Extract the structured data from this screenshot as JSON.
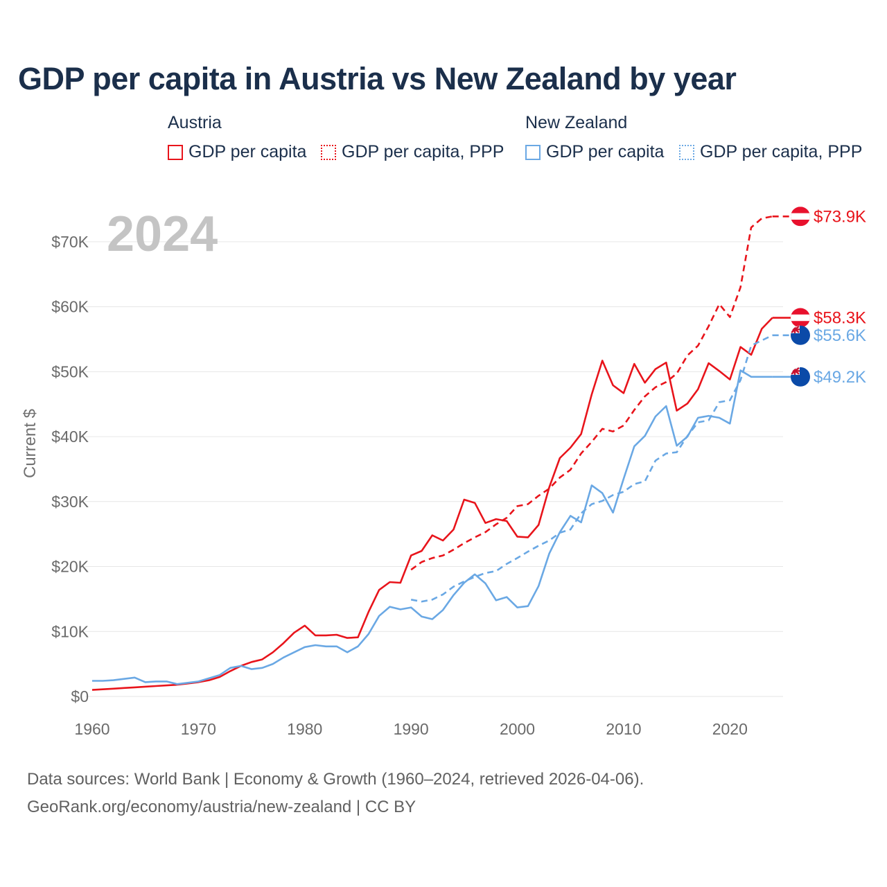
{
  "title": "GDP per capita in Austria vs New Zealand by year",
  "legend": {
    "austria": {
      "group": "Austria",
      "items": [
        "GDP per capita",
        "GDP per capita, PPP"
      ],
      "color": "#e8141b"
    },
    "new_zealand": {
      "group": "New Zealand",
      "items": [
        "GDP per capita",
        "GDP per capita, PPP"
      ],
      "color": "#6aa8e4"
    }
  },
  "year_label": "2024",
  "footer": {
    "line1": "Data sources: World Bank | Economy & Growth (1960–2024, retrieved 2026-04-06).",
    "line2": "GeoRank.org/economy/austria/new-zealand | CC BY"
  },
  "chart_data": {
    "type": "line",
    "title": "GDP per capita in Austria vs New Zealand by year",
    "xlabel": "",
    "ylabel": "Current $",
    "xlim": [
      1960,
      2025
    ],
    "ylim": [
      0,
      75000
    ],
    "x_ticks": [
      1960,
      1970,
      1980,
      1990,
      2000,
      2010,
      2020
    ],
    "y_ticks": [
      0,
      10000,
      20000,
      30000,
      40000,
      50000,
      60000,
      70000
    ],
    "y_tick_labels": [
      "$0",
      "$10K",
      "$20K",
      "$30K",
      "$40K",
      "$50K",
      "$60K",
      "$70K"
    ],
    "grid": true,
    "legend_position": "top",
    "series": [
      {
        "name": "Austria GDP per capita",
        "country": "Austria",
        "color": "#e8141b",
        "style": "solid",
        "end_label": "$58.3K",
        "start_year": 1960,
        "values": [
          1000,
          1100,
          1200,
          1300,
          1400,
          1500,
          1600,
          1700,
          1800,
          2000,
          2200,
          2500,
          3000,
          3900,
          4700,
          5300,
          5700,
          6800,
          8200,
          9800,
          10900,
          9400,
          9400,
          9500,
          9000,
          9100,
          13000,
          16400,
          17600,
          17500,
          21700,
          22400,
          24800,
          24000,
          25700,
          30300,
          29800,
          26700,
          27300,
          27000,
          24600,
          24500,
          26400,
          32200,
          36700,
          38300,
          40400,
          46500,
          51700,
          47900,
          46700,
          51200,
          48300,
          50400,
          51400,
          44000,
          45100,
          47300,
          51300,
          50100,
          48800,
          53800,
          52600,
          56600,
          58300
        ]
      },
      {
        "name": "Austria GDP per capita, PPP",
        "country": "Austria",
        "color": "#e8141b",
        "style": "dashed",
        "end_label": "$73.9K",
        "start_year": 1990,
        "values": [
          19500,
          20700,
          21300,
          21700,
          22600,
          23600,
          24500,
          25300,
          26500,
          27500,
          29300,
          29600,
          30900,
          32000,
          33700,
          34900,
          37400,
          39200,
          41200,
          40800,
          41700,
          44100,
          46200,
          47600,
          48400,
          49700,
          52500,
          54000,
          57000,
          60400,
          58400,
          63000,
          72200,
          73600,
          73900
        ]
      },
      {
        "name": "New Zealand GDP per capita",
        "country": "New Zealand",
        "color": "#6aa8e4",
        "style": "solid",
        "end_label": "$49.2K",
        "start_year": 1960,
        "values": [
          2400,
          2400,
          2500,
          2700,
          2900,
          2200,
          2300,
          2300,
          1900,
          2100,
          2300,
          2800,
          3300,
          4400,
          4700,
          4200,
          4400,
          5000,
          6000,
          6800,
          7600,
          7900,
          7700,
          7700,
          6800,
          7700,
          9600,
          12400,
          13800,
          13400,
          13700,
          12300,
          11900,
          13300,
          15600,
          17500,
          18800,
          17400,
          14800,
          15300,
          13700,
          13900,
          17000,
          22000,
          25300,
          27800,
          26800,
          32500,
          31300,
          28300,
          33500,
          38500,
          40100,
          43100,
          44700,
          38600,
          40000,
          42900,
          43200,
          42900,
          42000,
          50200,
          49200,
          49200,
          49200
        ]
      },
      {
        "name": "New Zealand GDP per capita, PPP",
        "country": "New Zealand",
        "color": "#6aa8e4",
        "style": "dashed",
        "end_label": "$55.6K",
        "start_year": 1990,
        "values": [
          14900,
          14600,
          14900,
          15700,
          16900,
          17700,
          18400,
          19000,
          19300,
          20400,
          21300,
          22300,
          23200,
          24000,
          25200,
          25700,
          28200,
          29600,
          30100,
          31000,
          31500,
          32700,
          33100,
          36300,
          37400,
          37600,
          40100,
          42200,
          42500,
          45300,
          45600,
          48700,
          54000,
          54800,
          55600
        ]
      }
    ]
  }
}
